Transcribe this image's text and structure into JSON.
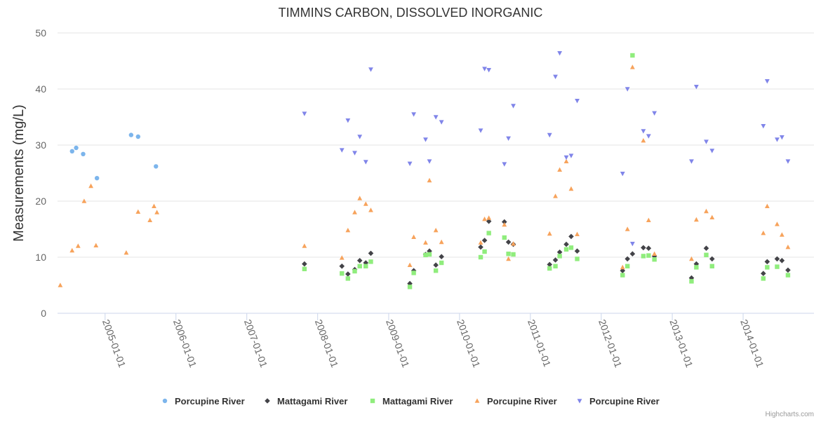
{
  "chart_data": {
    "type": "scatter",
    "title": "TIMMINS CARBON, DISSOLVED INORGANIC",
    "xlabel": "",
    "ylabel": "Measurements (mg/L)",
    "xlim": [
      "2004-05-01",
      "2015-01-01"
    ],
    "ylim": [
      0,
      50
    ],
    "yticks": [
      0,
      10,
      20,
      30,
      40,
      50
    ],
    "xticks": [
      "2005-01-01",
      "2006-01-01",
      "2007-01-01",
      "2008-01-01",
      "2009-01-01",
      "2010-01-01",
      "2011-01-01",
      "2012-01-01",
      "2013-01-01",
      "2014-01-01"
    ],
    "grid": true,
    "legend_position": "bottom-center",
    "credits": "Highcharts.com",
    "series": [
      {
        "name": "Porcupine River",
        "marker": "circle",
        "color": "#7cb5ec",
        "points": [
          [
            "2004-07-15",
            28.9
          ],
          [
            "2004-08-05",
            29.5
          ],
          [
            "2004-09-10",
            28.4
          ],
          [
            "2004-11-20",
            24.1
          ],
          [
            "2005-05-15",
            31.8
          ],
          [
            "2005-06-20",
            31.5
          ],
          [
            "2005-09-20",
            26.2
          ]
        ]
      },
      {
        "name": "Mattagami River",
        "marker": "diamond",
        "color": "#434348",
        "points": [
          [
            "2007-10-25",
            8.8
          ],
          [
            "2008-05-05",
            8.4
          ],
          [
            "2008-06-05",
            7.0
          ],
          [
            "2008-07-10",
            7.8
          ],
          [
            "2008-08-05",
            9.4
          ],
          [
            "2008-09-05",
            9.0
          ],
          [
            "2008-10-01",
            10.7
          ],
          [
            "2009-04-20",
            5.3
          ],
          [
            "2009-05-10",
            7.6
          ],
          [
            "2009-07-10",
            10.5
          ],
          [
            "2009-07-30",
            11.1
          ],
          [
            "2009-09-01",
            8.6
          ],
          [
            "2009-09-30",
            10.1
          ],
          [
            "2010-04-20",
            11.8
          ],
          [
            "2010-05-10",
            13.0
          ],
          [
            "2010-06-01",
            16.4
          ],
          [
            "2010-08-20",
            16.3
          ],
          [
            "2010-09-10",
            12.7
          ],
          [
            "2010-10-05",
            12.3
          ],
          [
            "2011-04-10",
            8.7
          ],
          [
            "2011-05-10",
            9.5
          ],
          [
            "2011-06-01",
            10.9
          ],
          [
            "2011-07-05",
            12.3
          ],
          [
            "2011-07-30",
            13.7
          ],
          [
            "2011-08-30",
            11.1
          ],
          [
            "2012-04-20",
            7.6
          ],
          [
            "2012-05-15",
            9.7
          ],
          [
            "2012-06-10",
            10.6
          ],
          [
            "2012-08-05",
            11.7
          ],
          [
            "2012-09-01",
            11.6
          ],
          [
            "2012-10-01",
            10.2
          ],
          [
            "2013-04-10",
            6.3
          ],
          [
            "2013-05-05",
            8.8
          ],
          [
            "2013-06-25",
            11.6
          ],
          [
            "2013-07-25",
            9.7
          ],
          [
            "2014-04-15",
            7.1
          ],
          [
            "2014-05-05",
            9.2
          ],
          [
            "2014-06-25",
            9.7
          ],
          [
            "2014-07-20",
            9.4
          ],
          [
            "2014-08-20",
            7.7
          ]
        ]
      },
      {
        "name": "Mattagami River",
        "marker": "square",
        "color": "#90ed7d",
        "points": [
          [
            "2007-10-25",
            7.9
          ],
          [
            "2008-05-05",
            7.1
          ],
          [
            "2008-06-05",
            6.2
          ],
          [
            "2008-07-10",
            7.5
          ],
          [
            "2008-08-05",
            8.4
          ],
          [
            "2008-09-05",
            8.4
          ],
          [
            "2008-10-01",
            9.2
          ],
          [
            "2009-04-20",
            4.7
          ],
          [
            "2009-05-10",
            7.2
          ],
          [
            "2009-07-10",
            10.4
          ],
          [
            "2009-07-30",
            10.5
          ],
          [
            "2009-09-01",
            7.6
          ],
          [
            "2009-09-30",
            9.0
          ],
          [
            "2010-04-20",
            10.0
          ],
          [
            "2010-05-10",
            11.0
          ],
          [
            "2010-06-01",
            14.3
          ],
          [
            "2010-08-20",
            13.5
          ],
          [
            "2010-09-10",
            10.6
          ],
          [
            "2010-10-05",
            10.5
          ],
          [
            "2011-04-10",
            8.0
          ],
          [
            "2011-05-10",
            8.4
          ],
          [
            "2011-06-01",
            10.2
          ],
          [
            "2011-07-05",
            11.4
          ],
          [
            "2011-07-30",
            11.7
          ],
          [
            "2011-08-30",
            9.7
          ],
          [
            "2012-04-20",
            6.8
          ],
          [
            "2012-05-15",
            8.4
          ],
          [
            "2012-06-10",
            46.0
          ],
          [
            "2012-08-05",
            10.2
          ],
          [
            "2012-09-01",
            10.3
          ],
          [
            "2012-10-01",
            9.6
          ],
          [
            "2013-04-10",
            5.7
          ],
          [
            "2013-05-05",
            8.2
          ],
          [
            "2013-06-25",
            10.4
          ],
          [
            "2013-07-25",
            8.4
          ],
          [
            "2014-04-15",
            6.2
          ],
          [
            "2014-05-05",
            8.2
          ],
          [
            "2014-06-25",
            8.3
          ],
          [
            "2014-08-20",
            6.8
          ]
        ]
      },
      {
        "name": "Porcupine River",
        "marker": "triangle",
        "color": "#f7a35c",
        "points": [
          [
            "2004-05-15",
            5.0
          ],
          [
            "2004-07-15",
            11.2
          ],
          [
            "2004-08-15",
            12.0
          ],
          [
            "2004-09-15",
            20.0
          ],
          [
            "2004-10-20",
            22.7
          ],
          [
            "2004-11-15",
            12.1
          ],
          [
            "2005-04-20",
            10.8
          ],
          [
            "2005-06-20",
            18.1
          ],
          [
            "2005-08-20",
            16.6
          ],
          [
            "2005-09-10",
            19.1
          ],
          [
            "2005-09-25",
            18.0
          ],
          [
            "2007-10-25",
            12.0
          ],
          [
            "2008-05-05",
            9.9
          ],
          [
            "2008-06-05",
            14.8
          ],
          [
            "2008-07-10",
            18.0
          ],
          [
            "2008-08-05",
            20.5
          ],
          [
            "2008-09-05",
            19.5
          ],
          [
            "2008-10-01",
            18.4
          ],
          [
            "2009-04-20",
            8.6
          ],
          [
            "2009-05-10",
            13.6
          ],
          [
            "2009-07-10",
            12.6
          ],
          [
            "2009-07-30",
            23.7
          ],
          [
            "2009-09-01",
            14.8
          ],
          [
            "2009-09-30",
            12.7
          ],
          [
            "2010-04-20",
            12.6
          ],
          [
            "2010-05-10",
            16.8
          ],
          [
            "2010-06-01",
            17.0
          ],
          [
            "2010-08-20",
            15.8
          ],
          [
            "2010-09-10",
            9.7
          ],
          [
            "2010-10-05",
            12.4
          ],
          [
            "2011-04-10",
            14.2
          ],
          [
            "2011-05-10",
            20.9
          ],
          [
            "2011-06-01",
            25.6
          ],
          [
            "2011-07-05",
            27.1
          ],
          [
            "2011-07-30",
            22.2
          ],
          [
            "2011-08-30",
            14.1
          ],
          [
            "2012-04-20",
            8.2
          ],
          [
            "2012-05-15",
            15.0
          ],
          [
            "2012-06-10",
            43.9
          ],
          [
            "2012-08-05",
            30.8
          ],
          [
            "2012-09-01",
            16.6
          ],
          [
            "2012-10-01",
            10.6
          ],
          [
            "2013-04-10",
            9.7
          ],
          [
            "2013-05-05",
            16.7
          ],
          [
            "2013-06-25",
            18.2
          ],
          [
            "2013-07-25",
            17.1
          ],
          [
            "2014-04-15",
            14.3
          ],
          [
            "2014-05-05",
            19.1
          ],
          [
            "2014-06-25",
            15.9
          ],
          [
            "2014-07-20",
            14.0
          ],
          [
            "2014-08-20",
            11.8
          ]
        ]
      },
      {
        "name": "Porcupine River",
        "marker": "triangle-down",
        "color": "#8085e9",
        "points": [
          [
            "2007-10-25",
            35.6
          ],
          [
            "2008-05-05",
            29.1
          ],
          [
            "2008-06-05",
            34.4
          ],
          [
            "2008-07-10",
            28.6
          ],
          [
            "2008-08-05",
            31.5
          ],
          [
            "2008-09-05",
            27.0
          ],
          [
            "2008-10-01",
            43.5
          ],
          [
            "2009-04-20",
            26.7
          ],
          [
            "2009-05-10",
            35.5
          ],
          [
            "2009-07-10",
            31.0
          ],
          [
            "2009-07-30",
            27.1
          ],
          [
            "2009-09-01",
            35.0
          ],
          [
            "2009-09-30",
            34.1
          ],
          [
            "2010-04-20",
            32.6
          ],
          [
            "2010-05-10",
            43.6
          ],
          [
            "2010-06-01",
            43.4
          ],
          [
            "2010-08-20",
            26.6
          ],
          [
            "2010-09-10",
            31.2
          ],
          [
            "2010-10-05",
            37.0
          ],
          [
            "2011-04-10",
            31.8
          ],
          [
            "2011-05-10",
            42.2
          ],
          [
            "2011-06-01",
            46.4
          ],
          [
            "2011-07-05",
            27.8
          ],
          [
            "2011-07-30",
            28.1
          ],
          [
            "2011-08-30",
            37.9
          ],
          [
            "2012-04-20",
            24.9
          ],
          [
            "2012-05-15",
            40.0
          ],
          [
            "2012-06-10",
            12.4
          ],
          [
            "2012-08-05",
            32.5
          ],
          [
            "2012-09-01",
            31.6
          ],
          [
            "2012-10-01",
            35.7
          ],
          [
            "2013-04-10",
            27.1
          ],
          [
            "2013-05-05",
            40.4
          ],
          [
            "2013-06-25",
            30.6
          ],
          [
            "2013-07-25",
            29.0
          ],
          [
            "2014-04-15",
            33.4
          ],
          [
            "2014-05-05",
            41.4
          ],
          [
            "2014-06-25",
            31.0
          ],
          [
            "2014-07-20",
            31.4
          ],
          [
            "2014-08-20",
            27.1
          ]
        ]
      }
    ]
  }
}
